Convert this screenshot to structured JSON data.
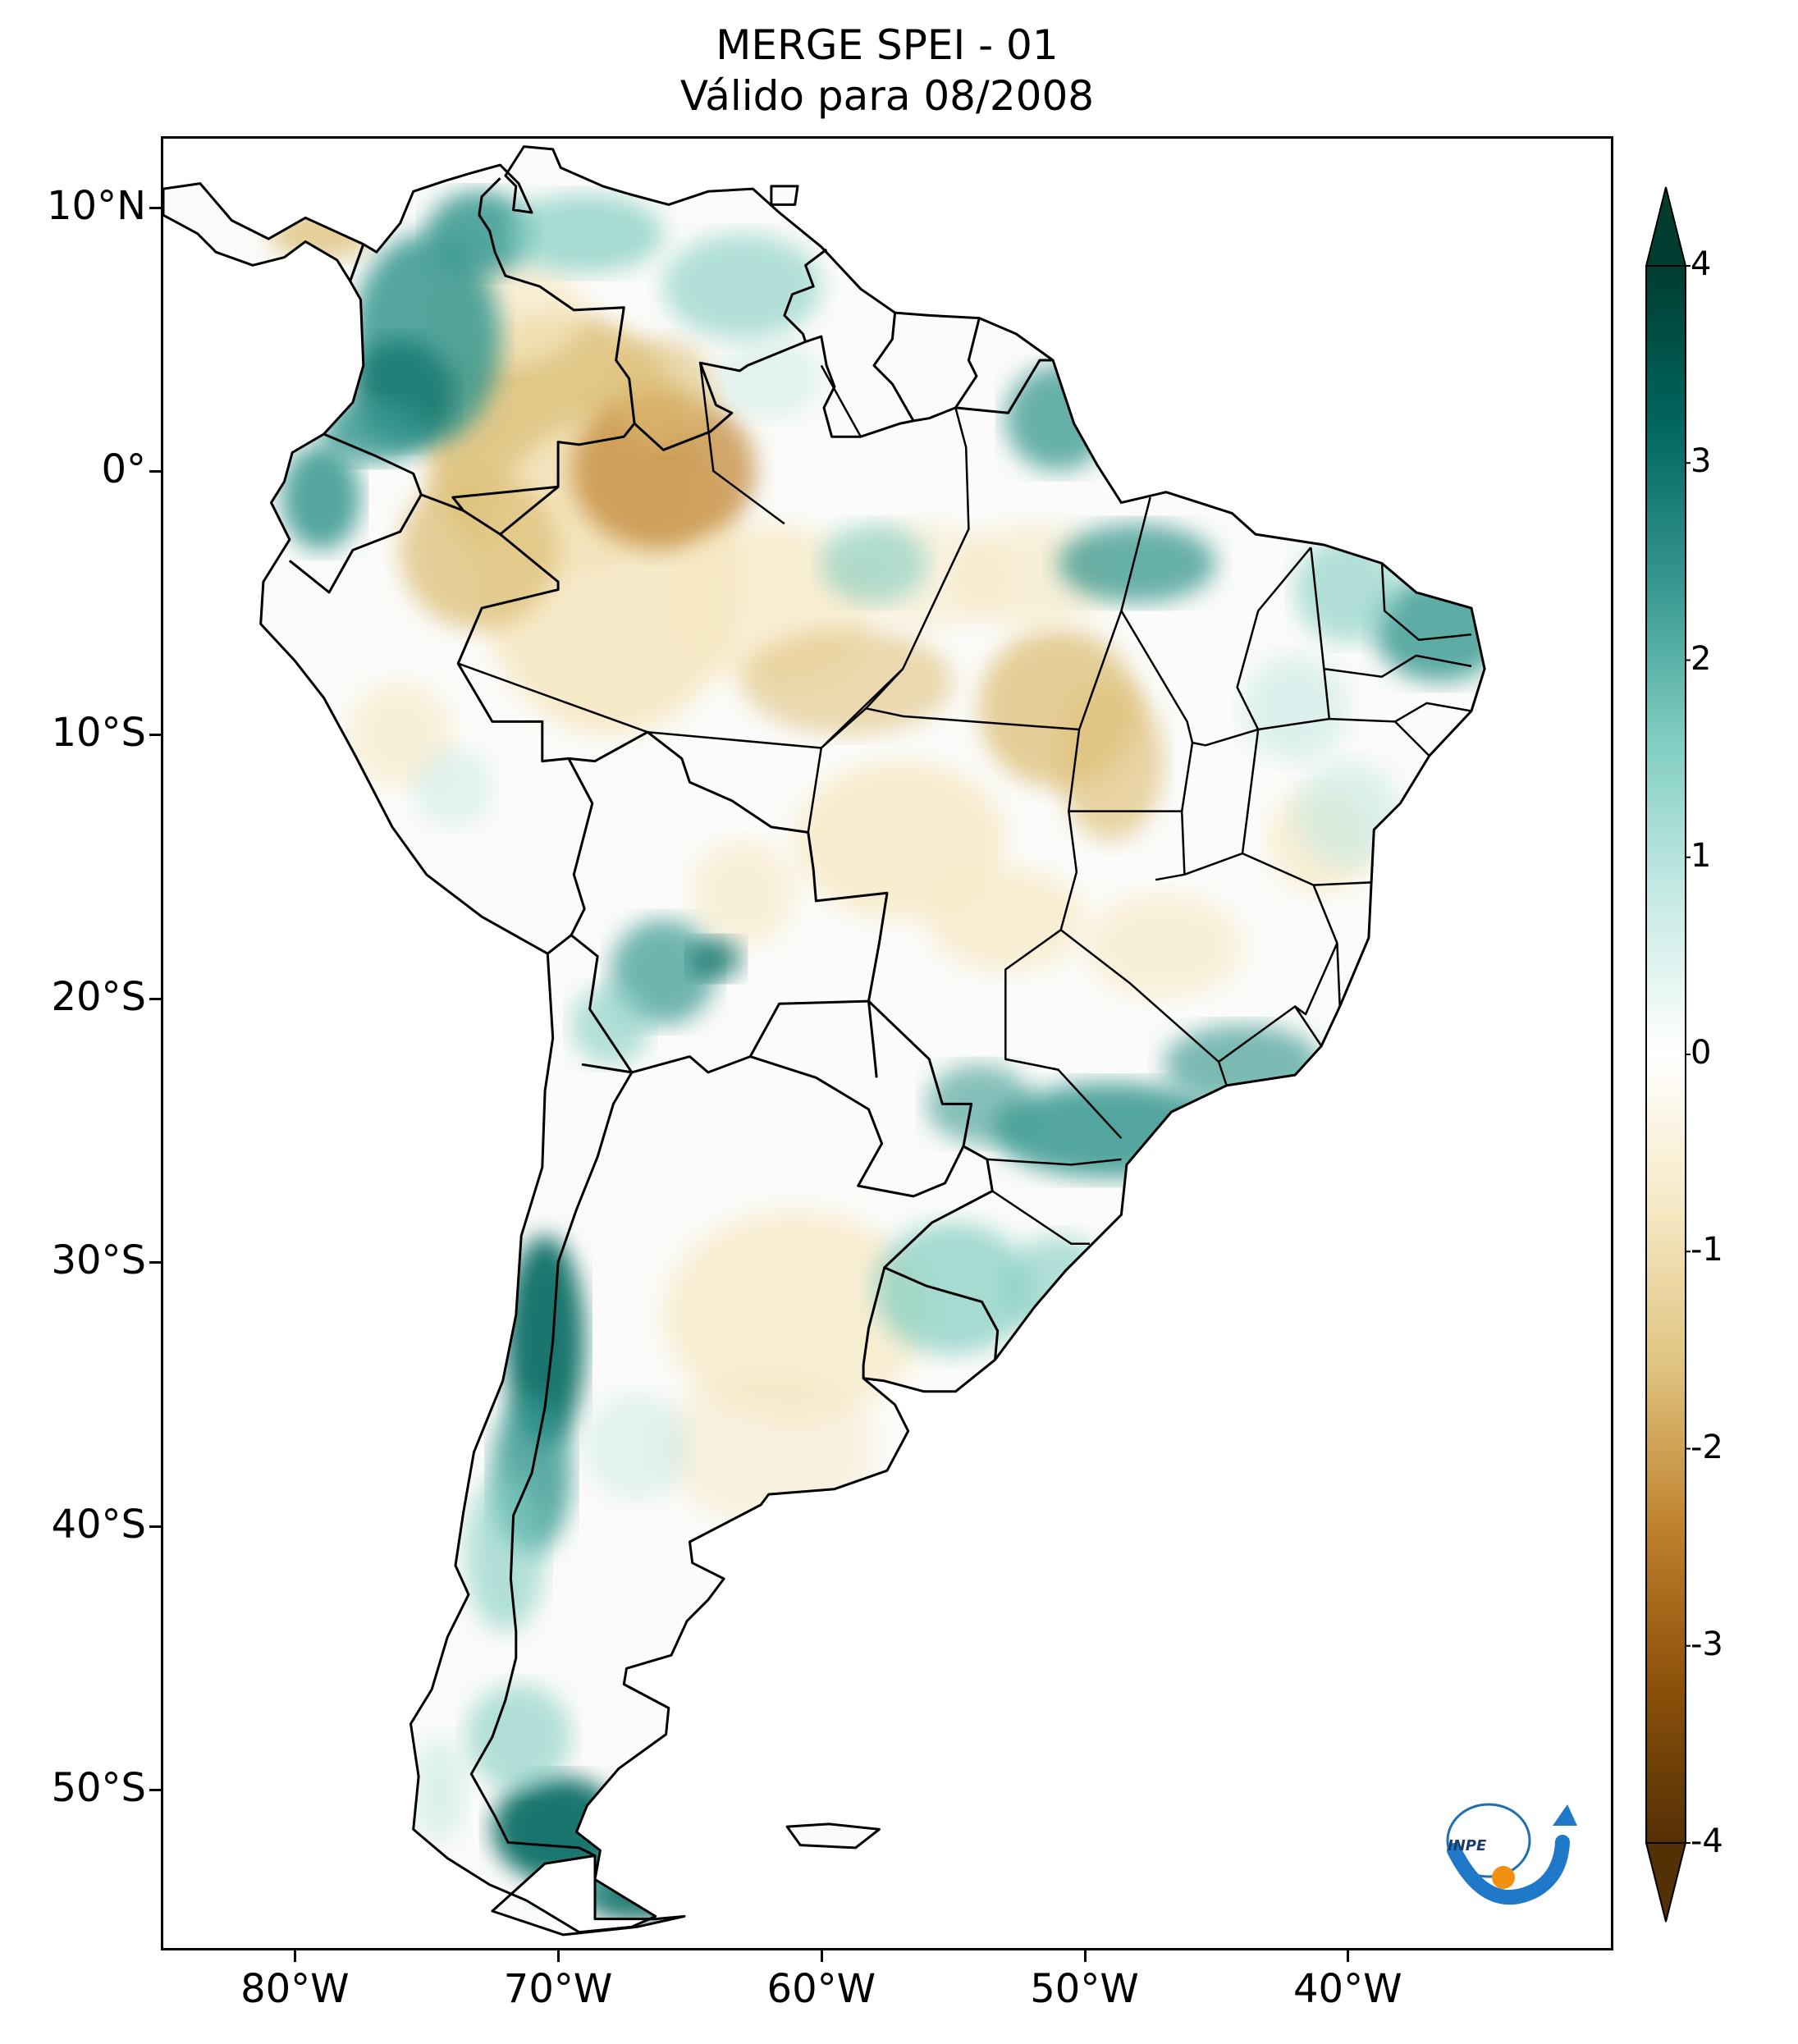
{
  "title": {
    "line1": "MERGE   SPEI - 01",
    "line2": "Válido para 08/2008"
  },
  "map": {
    "lon_range": [
      -85,
      -30
    ],
    "lat_range": [
      -56,
      12.6
    ],
    "lon_ticks": [
      {
        "value": -80,
        "label": "80°W"
      },
      {
        "value": -70,
        "label": "70°W"
      },
      {
        "value": -60,
        "label": "60°W"
      },
      {
        "value": -50,
        "label": "50°W"
      },
      {
        "value": -40,
        "label": "40°W"
      }
    ],
    "lat_ticks": [
      {
        "value": 10,
        "label": "10°N"
      },
      {
        "value": 0,
        "label": "0°"
      },
      {
        "value": -10,
        "label": "10°S"
      },
      {
        "value": -20,
        "label": "20°S"
      },
      {
        "value": -30,
        "label": "30°S"
      },
      {
        "value": -40,
        "label": "40°S"
      },
      {
        "value": -50,
        "label": "50°S"
      }
    ]
  },
  "colorbar": {
    "range": [
      -4,
      4
    ],
    "ticks": [
      {
        "value": 4,
        "label": "4"
      },
      {
        "value": 3,
        "label": "3"
      },
      {
        "value": 2,
        "label": "2"
      },
      {
        "value": 1,
        "label": "1"
      },
      {
        "value": 0,
        "label": "0"
      },
      {
        "value": -1,
        "label": "-1"
      },
      {
        "value": -2,
        "label": "-2"
      },
      {
        "value": -3,
        "label": "-3"
      },
      {
        "value": -4,
        "label": "-4"
      }
    ],
    "colors": [
      "#543005",
      "#8c510a",
      "#bf812d",
      "#dfc27d",
      "#f6e8c3",
      "#ffffff",
      "#c7eae5",
      "#80cdc1",
      "#35978f",
      "#01665e",
      "#003c30"
    ],
    "extend": "both"
  },
  "logo": {
    "text": "INPE"
  }
}
